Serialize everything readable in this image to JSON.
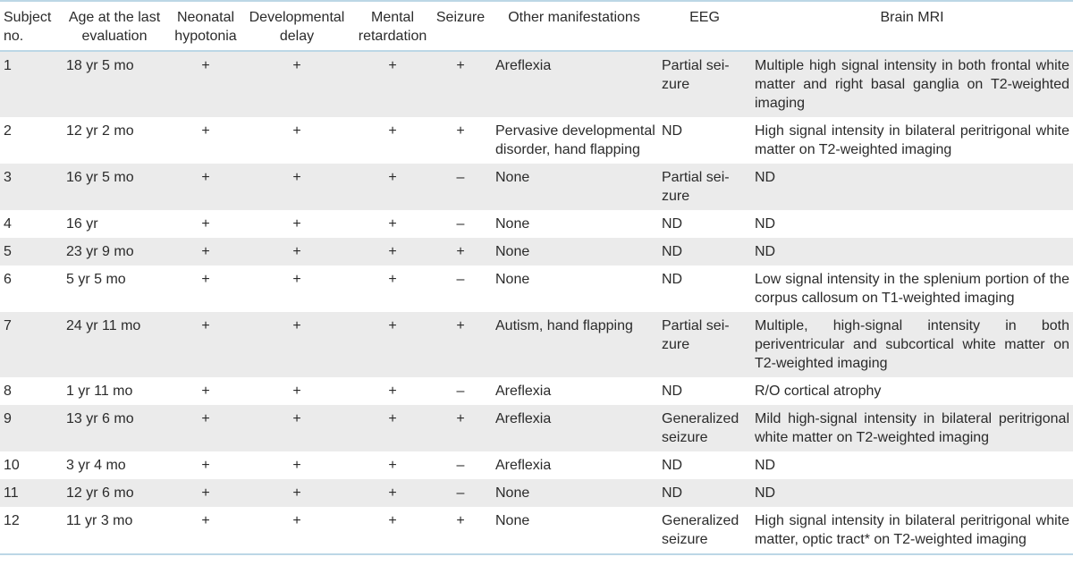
{
  "headers": [
    "Subject no.",
    "Age at the last evaluation",
    "Neonatal hypotonia",
    "Developmental delay",
    "Mental retardation",
    "Seizure",
    "Other manifestations",
    "EEG",
    "Brain MRI"
  ],
  "rows": [
    {
      "subject": "1",
      "age": "18 yr 5 mo",
      "hypotonia": "+",
      "delay": "+",
      "retardation": "+",
      "seizure": "+",
      "other": "Areflexia",
      "eeg": "Partial sei-\nzure",
      "mri": "Multiple high signal intensity in both frontal white matter and right basal ganglia on T2-weighted imaging"
    },
    {
      "subject": "2",
      "age": "12 yr 2 mo",
      "hypotonia": "+",
      "delay": "+",
      "retardation": "+",
      "seizure": "+",
      "other": "Pervasive developmental disorder, hand flapping",
      "eeg": "ND",
      "mri": "High signal intensity in bilateral peritrigonal white matter on T2-weighted imaging"
    },
    {
      "subject": "3",
      "age": "16 yr 5 mo",
      "hypotonia": "+",
      "delay": "+",
      "retardation": "+",
      "seizure": "–",
      "other": "None",
      "eeg": "Partial sei-\nzure",
      "mri": "ND"
    },
    {
      "subject": "4",
      "age": "16 yr",
      "hypotonia": "+",
      "delay": "+",
      "retardation": "+",
      "seizure": "–",
      "other": "None",
      "eeg": "ND",
      "mri": "ND"
    },
    {
      "subject": "5",
      "age": "23 yr 9 mo",
      "hypotonia": "+",
      "delay": "+",
      "retardation": "+",
      "seizure": "+",
      "other": "None",
      "eeg": "ND",
      "mri": "ND"
    },
    {
      "subject": "6",
      "age": "5 yr 5 mo",
      "hypotonia": "+",
      "delay": "+",
      "retardation": "+",
      "seizure": "–",
      "other": "None",
      "eeg": "ND",
      "mri": "Low signal intensity in the splenium portion of the corpus callosum on T1-weighted imaging"
    },
    {
      "subject": "7",
      "age": "24 yr 11 mo",
      "hypotonia": "+",
      "delay": "+",
      "retardation": "+",
      "seizure": "+",
      "other": "Autism, hand flapping",
      "eeg": "Partial sei-\nzure",
      "mri": "Multiple, high-signal intensity in both periventricular and subcortical white matter on T2-weighted imaging"
    },
    {
      "subject": "8",
      "age": "1 yr 11 mo",
      "hypotonia": "+",
      "delay": "+",
      "retardation": "+",
      "seizure": "–",
      "other": "Areflexia",
      "eeg": "ND",
      "mri": "R/O cortical atrophy"
    },
    {
      "subject": "9",
      "age": "13 yr 6 mo",
      "hypotonia": "+",
      "delay": "+",
      "retardation": "+",
      "seizure": "+",
      "other": "Areflexia",
      "eeg": "Generalized seizure",
      "mri": "Mild high-signal intensity in bilateral peritrigonal white matter on T2-weighted imaging"
    },
    {
      "subject": "10",
      "age": "3 yr 4 mo",
      "hypotonia": "+",
      "delay": "+",
      "retardation": "+",
      "seizure": "–",
      "other": "Areflexia",
      "eeg": "ND",
      "mri": "ND"
    },
    {
      "subject": "11",
      "age": "12 yr 6 mo",
      "hypotonia": "+",
      "delay": "+",
      "retardation": "+",
      "seizure": "–",
      "other": "None",
      "eeg": "ND",
      "mri": "ND"
    },
    {
      "subject": "12",
      "age": "11 yr 3 mo",
      "hypotonia": "+",
      "delay": "+",
      "retardation": "+",
      "seizure": "+",
      "other": "None",
      "eeg": "Generalized seizure",
      "mri": "High signal intensity in bilateral peritrigonal white matter, optic tract* on T2-weighted imaging"
    }
  ],
  "colors": {
    "shade": "#ebebeb",
    "rule": "#bcd7e6",
    "text": "#2b2b2b"
  }
}
